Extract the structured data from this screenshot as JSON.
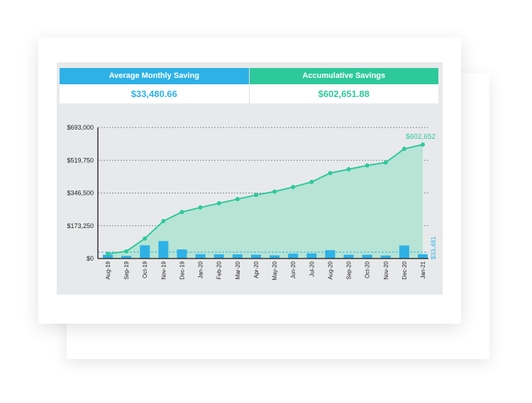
{
  "colors": {
    "blue": "#2eb1e6",
    "green": "#2ec99b",
    "area_fill": "#b7e4d5",
    "axis": "#333333",
    "panel": "#e8e9eb"
  },
  "stats": {
    "average": {
      "label": "Average Monthly Saving",
      "value": "$33,480.66"
    },
    "accumulative": {
      "label": "Accumulative Savings",
      "value": "$602,651.88"
    }
  },
  "chart_data": {
    "type": "bar+area",
    "categories": [
      "Aug-19",
      "Sep-19",
      "Oct-19",
      "Nov-19",
      "Dec-19",
      "Jan-20",
      "Feb-20",
      "Mar-20",
      "Apr-20",
      "May-20",
      "Jun-20",
      "Jul-20",
      "Aug-20",
      "Sep-20",
      "Oct-20",
      "Nov-20",
      "Dec-20",
      "Jan-21"
    ],
    "ylim": [
      0,
      693000
    ],
    "yticks": [
      0,
      173250,
      346500,
      519750,
      693000
    ],
    "ytick_labels": [
      "$0",
      "$173,250",
      "$346,500",
      "$519,750",
      "$693,000"
    ],
    "grid": "dashed horizontal",
    "series": [
      {
        "kind": "bar",
        "color": "#2eb1e6",
        "values": [
          20000,
          14000,
          70000,
          92000,
          48000,
          23000,
          22000,
          22000,
          20000,
          17000,
          26000,
          27000,
          44000,
          20000,
          20000,
          16000,
          69000,
          23000
        ]
      },
      {
        "kind": "area-line",
        "color": "#2ec99b",
        "values": [
          25000,
          38000,
          106000,
          198000,
          246000,
          270000,
          292000,
          314000,
          336000,
          354000,
          378000,
          405000,
          452000,
          472000,
          492000,
          508000,
          580000,
          602652
        ]
      }
    ],
    "average_line": {
      "value": 33481,
      "label": "$33,481"
    },
    "end_annotation": "$602,652"
  }
}
